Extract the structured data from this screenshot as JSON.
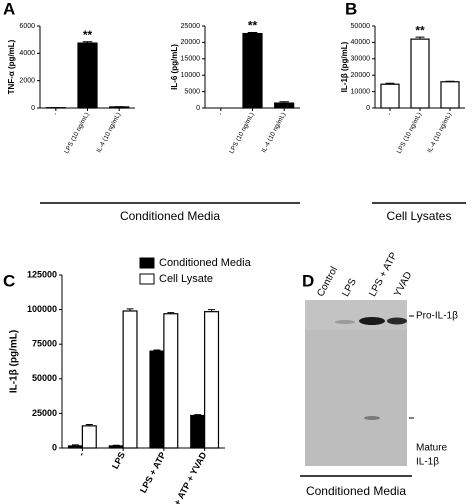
{
  "panel_labels": [
    "A",
    "B",
    "C",
    "D"
  ],
  "group_labels": [
    "Conditioned Media",
    "Cell Lysates",
    "Conditioned Media"
  ],
  "chart_data": [
    {
      "type": "bar",
      "ylabel": "TNF-α (pg/mL)",
      "categories": [
        "-",
        "LPS (10 ng/mL)",
        "IL-4 (10 ng/mL)"
      ],
      "values": [
        20,
        4750,
        80
      ],
      "errors": [
        5,
        100,
        10
      ],
      "value_annotations": [
        null,
        "**",
        null
      ],
      "color": "#000000",
      "edgecolor": "#000000",
      "ylim": [
        0,
        6000
      ],
      "yticks": [
        0,
        2000,
        4000,
        6000
      ]
    },
    {
      "type": "bar",
      "ylabel": "IL-6 (pg/mL)",
      "categories": [
        "-",
        "LPS (10 ng/mL)",
        "IL-4 (10 ng/mL)"
      ],
      "values": [
        0,
        22700,
        1500
      ],
      "errors": [
        0,
        300,
        400
      ],
      "value_annotations": [
        null,
        "**",
        null
      ],
      "color": "#000000",
      "edgecolor": "#000000",
      "ylim": [
        0,
        25000
      ],
      "yticks": [
        0,
        5000,
        10000,
        15000,
        20000,
        25000
      ]
    },
    {
      "type": "bar",
      "ylabel": "IL-1β (pg/mL)",
      "categories": [
        "-",
        "LPS (10 ng/mL)",
        "IL-4 (10 ng/mL)"
      ],
      "values": [
        14500,
        42000,
        16000
      ],
      "errors": [
        600,
        1200,
        300
      ],
      "value_annotations": [
        null,
        "**",
        null
      ],
      "color": "#ffffff",
      "edgecolor": "#000000",
      "ylim": [
        0,
        50000
      ],
      "yticks": [
        0,
        10000,
        20000,
        30000,
        40000,
        50000
      ]
    },
    {
      "type": "grouped_bar",
      "ylabel": "IL-1β (pg/mL)",
      "categories": [
        "-",
        "LPS",
        "LPS + ATP",
        "LPS + ATP + YVAD"
      ],
      "series": [
        {
          "name": "Conditioned Media",
          "color": "#000000",
          "values": [
            1500,
            1500,
            70000,
            23500
          ],
          "errors": [
            800,
            500,
            800,
            600
          ]
        },
        {
          "name": "Cell Lysate",
          "color": "#ffffff",
          "values": [
            16000,
            99000,
            97000,
            98500
          ],
          "errors": [
            1000,
            1500,
            800,
            1500
          ]
        }
      ],
      "edgecolor": "#000000",
      "legend": "top",
      "ylim": [
        0,
        125000
      ],
      "yticks": [
        0,
        25000,
        50000,
        75000,
        100000,
        125000
      ]
    }
  ],
  "blot": {
    "lanes": [
      "Control",
      "LPS",
      "LPS + ATP",
      "YVAD"
    ],
    "bands": [
      {
        "label": [
          "Pro-IL-1β"
        ]
      },
      {
        "label": [
          "Mature",
          "IL-1β"
        ]
      }
    ]
  }
}
